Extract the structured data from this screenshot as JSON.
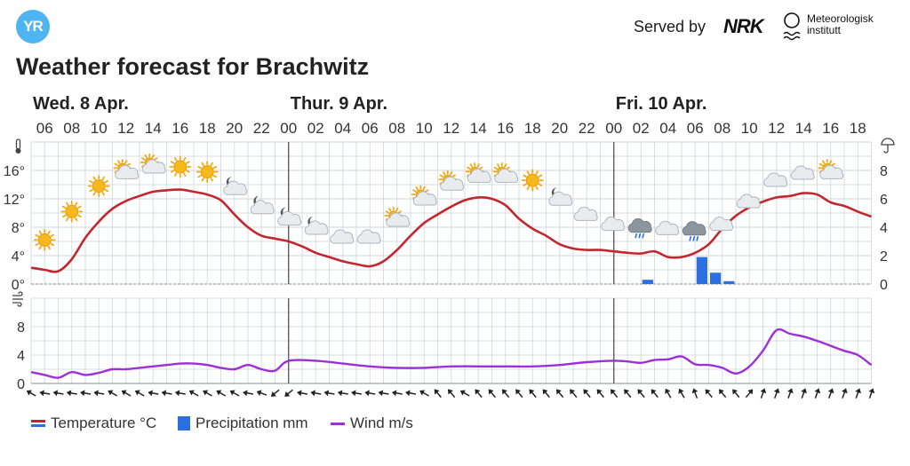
{
  "header": {
    "logo_text": "YR",
    "served_by": "Served by",
    "nrk_logo": "NRK",
    "met_logo": "Meteorologisk institutt",
    "title": "Weather forecast for Brachwitz"
  },
  "colors": {
    "temperature": "#c3272e",
    "precipitation": "#2b6fe0",
    "wind": "#9b30d9",
    "grid": "#d6dde3",
    "day_divider": "#555555"
  },
  "chart_data": [
    {
      "type": "line",
      "title": "",
      "ylabel": "°C",
      "y2label": "mm",
      "ylim": [
        0,
        20
      ],
      "y2lim": [
        0,
        10
      ],
      "yticks": [
        "0°",
        "4°",
        "8°",
        "12°",
        "16°"
      ],
      "y2ticks": [
        "0",
        "2",
        "4",
        "6",
        "8"
      ],
      "day_labels": [
        {
          "label": "Wed. 8 Apr.",
          "hour": 5
        },
        {
          "label": "Thur. 9 Apr.",
          "hour": 24
        },
        {
          "label": "Fri. 10 Apr.",
          "hour": 48
        }
      ],
      "day_dividers": [
        24,
        48
      ],
      "x_tick_hours": [
        6,
        8,
        10,
        12,
        14,
        16,
        18,
        20,
        22,
        24,
        26,
        28,
        30,
        32,
        34,
        36,
        38,
        40,
        42,
        44,
        46,
        48,
        50,
        52,
        54,
        56,
        58,
        60,
        62,
        64,
        66
      ],
      "x_tick_labels": [
        "06",
        "08",
        "10",
        "12",
        "14",
        "16",
        "18",
        "20",
        "22",
        "00",
        "02",
        "04",
        "06",
        "08",
        "10",
        "12",
        "14",
        "16",
        "18",
        "20",
        "22",
        "00",
        "02",
        "04",
        "06",
        "08",
        "10",
        "12",
        "14",
        "16",
        "18"
      ],
      "series": [
        {
          "name": "Temperature °C",
          "hours": [
            5,
            6,
            7,
            8,
            9,
            10,
            11,
            12,
            13,
            14,
            15,
            16,
            17,
            18,
            19,
            20,
            21,
            22,
            23,
            24,
            25,
            26,
            27,
            28,
            29,
            30,
            31,
            32,
            33,
            34,
            35,
            36,
            37,
            38,
            39,
            40,
            41,
            42,
            43,
            44,
            45,
            46,
            47,
            48,
            49,
            50,
            51,
            52,
            53,
            54,
            55,
            56,
            57,
            58,
            59,
            60,
            61,
            62,
            63,
            64,
            65,
            66,
            67
          ],
          "values": [
            2.3,
            2.0,
            1.8,
            3.5,
            6.5,
            8.8,
            10.6,
            11.7,
            12.4,
            13.0,
            13.2,
            13.3,
            13.0,
            12.6,
            11.8,
            9.8,
            8.0,
            6.8,
            6.4,
            6.0,
            5.3,
            4.4,
            3.8,
            3.2,
            2.8,
            2.5,
            3.2,
            4.8,
            6.8,
            8.6,
            9.8,
            10.9,
            11.8,
            12.2,
            12.0,
            11.1,
            9.2,
            7.8,
            6.8,
            5.6,
            5.0,
            4.8,
            4.8,
            4.6,
            4.4,
            4.3,
            4.6,
            3.8,
            3.8,
            4.4,
            5.6,
            7.8,
            9.6,
            10.8,
            11.6,
            12.2,
            12.4,
            12.8,
            12.6,
            11.5,
            11.0,
            10.2,
            9.5
          ]
        },
        {
          "name": "Precipitation mm",
          "bars": [
            {
              "hour": 50,
              "value": 0.3
            },
            {
              "hour": 54,
              "value": 1.9
            },
            {
              "hour": 55,
              "value": 0.8
            },
            {
              "hour": 56,
              "value": 0.2
            }
          ]
        }
      ],
      "weather_icons": [
        {
          "hour": 6,
          "icon": "sun-icon",
          "temp": 6.2
        },
        {
          "hour": 8,
          "icon": "sun-icon",
          "temp": 10.2
        },
        {
          "hour": 10,
          "icon": "sun-icon",
          "temp": 13.8
        },
        {
          "hour": 12,
          "icon": "partly-cloudy-day-icon",
          "temp": 15.7
        },
        {
          "hour": 14,
          "icon": "partly-cloudy-day-icon",
          "temp": 16.5
        },
        {
          "hour": 16,
          "icon": "sun-icon",
          "temp": 16.5
        },
        {
          "hour": 18,
          "icon": "sun-icon",
          "temp": 15.8
        },
        {
          "hour": 20,
          "icon": "partly-cloudy-night-icon",
          "temp": 13.6
        },
        {
          "hour": 22,
          "icon": "partly-cloudy-night-icon",
          "temp": 10.9
        },
        {
          "hour": 24,
          "icon": "partly-cloudy-night-icon",
          "temp": 9.3
        },
        {
          "hour": 26,
          "icon": "partly-cloudy-night-icon",
          "temp": 8.0
        },
        {
          "hour": 28,
          "icon": "cloud-icon",
          "temp": 6.5
        },
        {
          "hour": 30,
          "icon": "cloud-icon",
          "temp": 6.5
        },
        {
          "hour": 32,
          "icon": "partly-cloudy-day-icon",
          "temp": 9.0
        },
        {
          "hour": 34,
          "icon": "partly-cloudy-day-icon",
          "temp": 12.0
        },
        {
          "hour": 36,
          "icon": "partly-cloudy-day-icon",
          "temp": 14.1
        },
        {
          "hour": 38,
          "icon": "partly-cloudy-day-icon",
          "temp": 15.2
        },
        {
          "hour": 40,
          "icon": "partly-cloudy-day-icon",
          "temp": 15.2
        },
        {
          "hour": 42,
          "icon": "sun-icon",
          "temp": 14.6
        },
        {
          "hour": 44,
          "icon": "partly-cloudy-night-icon",
          "temp": 12.1
        },
        {
          "hour": 46,
          "icon": "cloud-icon",
          "temp": 9.7
        },
        {
          "hour": 48,
          "icon": "cloud-icon",
          "temp": 8.3
        },
        {
          "hour": 50,
          "icon": "rain-cloud-icon",
          "temp": 7.8
        },
        {
          "hour": 52,
          "icon": "cloud-icon",
          "temp": 7.7
        },
        {
          "hour": 54,
          "icon": "rain-cloud-icon",
          "temp": 7.4
        },
        {
          "hour": 56,
          "icon": "cloud-icon",
          "temp": 8.3
        },
        {
          "hour": 58,
          "icon": "cloud-icon",
          "temp": 11.5
        },
        {
          "hour": 60,
          "icon": "cloud-icon",
          "temp": 14.5
        },
        {
          "hour": 62,
          "icon": "cloud-icon",
          "temp": 15.5
        },
        {
          "hour": 64,
          "icon": "partly-cloudy-day-icon",
          "temp": 15.7
        }
      ]
    },
    {
      "type": "line",
      "title": "",
      "ylabel": "m/s",
      "ylim": [
        0,
        12
      ],
      "yticks": [
        "0",
        "4",
        "8"
      ],
      "series": [
        {
          "name": "Wind m/s",
          "hours": [
            5,
            6,
            7,
            8,
            9,
            10,
            11,
            12,
            13,
            14,
            15,
            16,
            17,
            18,
            19,
            20,
            21,
            22,
            23,
            24,
            26,
            28,
            30,
            32,
            34,
            36,
            38,
            40,
            42,
            44,
            46,
            48,
            49,
            50,
            51,
            52,
            53,
            54,
            55,
            56,
            57,
            58,
            59,
            60,
            61,
            62,
            63,
            64,
            65,
            66,
            67
          ],
          "values": [
            1.6,
            1.2,
            0.8,
            1.6,
            1.2,
            1.5,
            2.0,
            2.0,
            2.2,
            2.4,
            2.6,
            2.8,
            2.8,
            2.6,
            2.2,
            2.0,
            2.6,
            2.0,
            1.8,
            3.2,
            3.2,
            2.8,
            2.4,
            2.2,
            2.2,
            2.4,
            2.4,
            2.4,
            2.4,
            2.6,
            3.0,
            3.2,
            3.1,
            2.9,
            3.3,
            3.4,
            3.8,
            2.7,
            2.6,
            2.2,
            1.4,
            2.4,
            4.6,
            7.5,
            7.0,
            6.6,
            6.0,
            5.3,
            4.6,
            4.0,
            2.6
          ]
        }
      ],
      "wind_arrows": [
        {
          "hour": 5,
          "dir": 300
        },
        {
          "hour": 6,
          "dir": 280
        },
        {
          "hour": 7,
          "dir": 280
        },
        {
          "hour": 8,
          "dir": 280
        },
        {
          "hour": 9,
          "dir": 280
        },
        {
          "hour": 10,
          "dir": 280
        },
        {
          "hour": 11,
          "dir": 300
        },
        {
          "hour": 12,
          "dir": 300
        },
        {
          "hour": 13,
          "dir": 300
        },
        {
          "hour": 14,
          "dir": 280
        },
        {
          "hour": 15,
          "dir": 280
        },
        {
          "hour": 16,
          "dir": 280
        },
        {
          "hour": 17,
          "dir": 300
        },
        {
          "hour": 18,
          "dir": 300
        },
        {
          "hour": 19,
          "dir": 300
        },
        {
          "hour": 20,
          "dir": 300
        },
        {
          "hour": 21,
          "dir": 280
        },
        {
          "hour": 22,
          "dir": 290
        },
        {
          "hour": 23,
          "dir": 230
        },
        {
          "hour": 24,
          "dir": 230
        },
        {
          "hour": 25,
          "dir": 280
        },
        {
          "hour": 26,
          "dir": 280
        },
        {
          "hour": 27,
          "dir": 280
        },
        {
          "hour": 28,
          "dir": 280
        },
        {
          "hour": 29,
          "dir": 280
        },
        {
          "hour": 30,
          "dir": 280
        },
        {
          "hour": 31,
          "dir": 280
        },
        {
          "hour": 32,
          "dir": 280
        },
        {
          "hour": 33,
          "dir": 280
        },
        {
          "hour": 34,
          "dir": 300
        },
        {
          "hour": 35,
          "dir": 320
        },
        {
          "hour": 36,
          "dir": 320
        },
        {
          "hour": 37,
          "dir": 300
        },
        {
          "hour": 38,
          "dir": 320
        },
        {
          "hour": 39,
          "dir": 320
        },
        {
          "hour": 40,
          "dir": 320
        },
        {
          "hour": 41,
          "dir": 320
        },
        {
          "hour": 42,
          "dir": 320
        },
        {
          "hour": 43,
          "dir": 320
        },
        {
          "hour": 44,
          "dir": 320
        },
        {
          "hour": 45,
          "dir": 320
        },
        {
          "hour": 46,
          "dir": 320
        },
        {
          "hour": 47,
          "dir": 320
        },
        {
          "hour": 48,
          "dir": 320
        },
        {
          "hour": 49,
          "dir": 320
        },
        {
          "hour": 50,
          "dir": 320
        },
        {
          "hour": 51,
          "dir": 320
        },
        {
          "hour": 52,
          "dir": 330
        },
        {
          "hour": 53,
          "dir": 330
        },
        {
          "hour": 54,
          "dir": 340
        },
        {
          "hour": 55,
          "dir": 320
        },
        {
          "hour": 56,
          "dir": 320
        },
        {
          "hour": 57,
          "dir": 320
        },
        {
          "hour": 58,
          "dir": 40
        },
        {
          "hour": 59,
          "dir": 20
        },
        {
          "hour": 60,
          "dir": 20
        },
        {
          "hour": 61,
          "dir": 20
        },
        {
          "hour": 62,
          "dir": 20
        },
        {
          "hour": 63,
          "dir": 20
        },
        {
          "hour": 64,
          "dir": 20
        },
        {
          "hour": 65,
          "dir": 20
        },
        {
          "hour": 66,
          "dir": 20
        },
        {
          "hour": 67,
          "dir": 20
        }
      ]
    }
  ],
  "legend": {
    "temperature": "Temperature °C",
    "precipitation": "Precipitation mm",
    "wind": "Wind m/s"
  }
}
